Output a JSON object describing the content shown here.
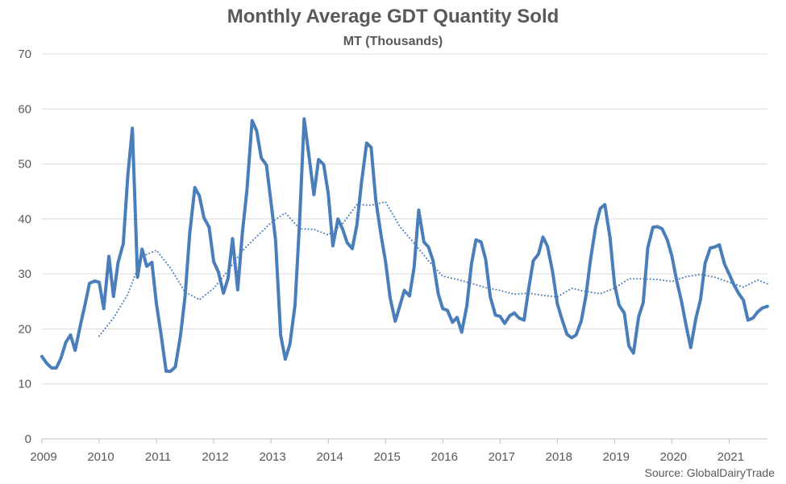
{
  "chart_data": {
    "type": "line",
    "title": "Monthly Average GDT Quantity Sold",
    "subtitle": "MT (Thousands)",
    "source": "Source: GlobalDairyTrade",
    "xlabel": "",
    "ylabel": "",
    "ylim": [
      0,
      70
    ],
    "xlim": [
      2009,
      2021.67
    ],
    "y_ticks": [
      0,
      10,
      20,
      30,
      40,
      50,
      60,
      70
    ],
    "x_ticks": [
      2009,
      2010,
      2011,
      2012,
      2013,
      2014,
      2015,
      2016,
      2017,
      2018,
      2019,
      2020,
      2021
    ],
    "x_tick_labels": [
      "2009",
      "2010",
      "2011",
      "2012",
      "2013",
      "2014",
      "2015",
      "2016",
      "2017",
      "2018",
      "2019",
      "2020",
      "2021"
    ],
    "grid": "horizontal",
    "legend": "none",
    "colors": {
      "series": "#4a7ebb",
      "grid": "#d9d9d9",
      "text": "#595959"
    },
    "series": [
      {
        "style": "solid",
        "x": [
          2009.0,
          2009.08,
          2009.17,
          2009.25,
          2009.33,
          2009.42,
          2009.5,
          2009.58,
          2009.67,
          2009.75,
          2009.83,
          2009.92,
          2010.0,
          2010.08,
          2010.17,
          2010.25,
          2010.33,
          2010.42,
          2010.5,
          2010.58,
          2010.67,
          2010.75,
          2010.83,
          2010.92,
          2011.0,
          2011.08,
          2011.17,
          2011.25,
          2011.33,
          2011.42,
          2011.5,
          2011.58,
          2011.67,
          2011.75,
          2011.83,
          2011.92,
          2012.0,
          2012.08,
          2012.17,
          2012.25,
          2012.33,
          2012.42,
          2012.5,
          2012.58,
          2012.67,
          2012.75,
          2012.83,
          2012.92,
          2013.0,
          2013.08,
          2013.17,
          2013.25,
          2013.33,
          2013.42,
          2013.5,
          2013.58,
          2013.67,
          2013.75,
          2013.83,
          2013.92,
          2014.0,
          2014.08,
          2014.17,
          2014.25,
          2014.33,
          2014.42,
          2014.5,
          2014.58,
          2014.67,
          2014.75,
          2014.83,
          2014.92,
          2015.0,
          2015.08,
          2015.17,
          2015.25,
          2015.33,
          2015.42,
          2015.5,
          2015.58,
          2015.67,
          2015.75,
          2015.83,
          2015.92,
          2016.0,
          2016.08,
          2016.17,
          2016.25,
          2016.33,
          2016.42,
          2016.5,
          2016.58,
          2016.67,
          2016.75,
          2016.83,
          2016.92,
          2017.0,
          2017.08,
          2017.17,
          2017.25,
          2017.33,
          2017.42,
          2017.5,
          2017.58,
          2017.67,
          2017.75,
          2017.83,
          2017.92,
          2018.0,
          2018.08,
          2018.17,
          2018.25,
          2018.33,
          2018.42,
          2018.5,
          2018.58,
          2018.67,
          2018.75,
          2018.83,
          2018.92,
          2019.0,
          2019.08,
          2019.17,
          2019.25,
          2019.33,
          2019.42,
          2019.5,
          2019.58,
          2019.67,
          2019.75,
          2019.83,
          2019.92,
          2020.0,
          2020.08,
          2020.17,
          2020.25,
          2020.33,
          2020.42,
          2020.5,
          2020.58,
          2020.67,
          2020.75,
          2020.83,
          2020.92,
          2021.0,
          2021.08,
          2021.17,
          2021.25,
          2021.33,
          2021.42,
          2021.5,
          2021.58,
          2021.67
        ],
        "values": [
          15.0,
          13.8,
          12.9,
          12.9,
          14.6,
          17.6,
          18.9,
          16.1,
          20.6,
          24.3,
          28.3,
          28.7,
          28.5,
          23.7,
          33.2,
          25.9,
          32.1,
          35.5,
          48.0,
          56.5,
          29.4,
          34.5,
          31.4,
          32.1,
          24.5,
          19.0,
          12.3,
          12.3,
          13.1,
          18.8,
          26.0,
          37.3,
          45.7,
          44.2,
          40.2,
          38.5,
          32.2,
          30.4,
          26.5,
          29.2,
          36.4,
          27.1,
          37.4,
          45.2,
          57.9,
          56.0,
          51.1,
          49.8,
          43.1,
          36.2,
          18.8,
          14.5,
          17.2,
          24.4,
          39.7,
          58.2,
          51.0,
          44.4,
          50.8,
          49.9,
          44.6,
          35.1,
          40.0,
          38.2,
          35.7,
          34.6,
          38.9,
          46.6,
          53.8,
          53.0,
          43.5,
          37.2,
          32.3,
          25.7,
          21.4,
          24.2,
          27.0,
          26.0,
          31.2,
          41.6,
          35.8,
          34.9,
          32.4,
          26.4,
          23.7,
          23.4,
          21.2,
          22.1,
          19.4,
          24.2,
          31.8,
          36.2,
          35.8,
          32.6,
          25.8,
          22.5,
          22.3,
          21.0,
          22.4,
          22.9,
          22.0,
          21.6,
          27.3,
          32.4,
          33.6,
          36.7,
          35.0,
          30.3,
          24.6,
          21.8,
          19.0,
          18.4,
          18.9,
          21.5,
          26.0,
          32.6,
          38.6,
          41.9,
          42.6,
          36.6,
          28.1,
          24.3,
          22.9,
          16.9,
          15.6,
          22.2,
          24.8,
          34.7,
          38.5,
          38.6,
          38.2,
          36.2,
          33.3,
          29.0,
          25.0,
          20.6,
          16.6,
          21.9,
          25.3,
          31.9,
          34.7,
          34.9,
          35.3,
          31.8,
          30.0,
          28.1,
          26.4,
          25.2,
          21.6,
          22.0,
          23.1,
          23.8,
          24.1
        ]
      },
      {
        "style": "dotted",
        "x": [
          2010.0,
          2010.25,
          2010.5,
          2010.75,
          2011.0,
          2011.25,
          2011.5,
          2011.75,
          2012.0,
          2012.25,
          2012.5,
          2012.75,
          2013.0,
          2013.25,
          2013.5,
          2013.75,
          2014.0,
          2014.25,
          2014.5,
          2014.75,
          2015.0,
          2015.25,
          2015.5,
          2015.75,
          2016.0,
          2016.25,
          2016.5,
          2016.75,
          2017.0,
          2017.25,
          2017.5,
          2017.75,
          2018.0,
          2018.25,
          2018.5,
          2018.75,
          2019.0,
          2019.25,
          2019.5,
          2019.75,
          2020.0,
          2020.25,
          2020.5,
          2020.75,
          2021.0,
          2021.25,
          2021.5,
          2021.67
        ],
        "values": [
          18.7,
          22.0,
          26.3,
          33.2,
          34.3,
          31.0,
          26.7,
          25.3,
          27.4,
          30.6,
          34.2,
          36.8,
          39.3,
          41.1,
          38.2,
          38.1,
          37.1,
          39.1,
          42.6,
          42.5,
          43.1,
          38.6,
          35.6,
          32.4,
          29.6,
          29.0,
          28.3,
          27.5,
          27.0,
          26.3,
          26.5,
          26.1,
          25.8,
          27.4,
          26.8,
          26.4,
          27.4,
          29.1,
          29.1,
          29.0,
          28.6,
          29.5,
          29.9,
          29.4,
          28.5,
          27.6,
          28.9,
          28.2
        ]
      }
    ]
  }
}
